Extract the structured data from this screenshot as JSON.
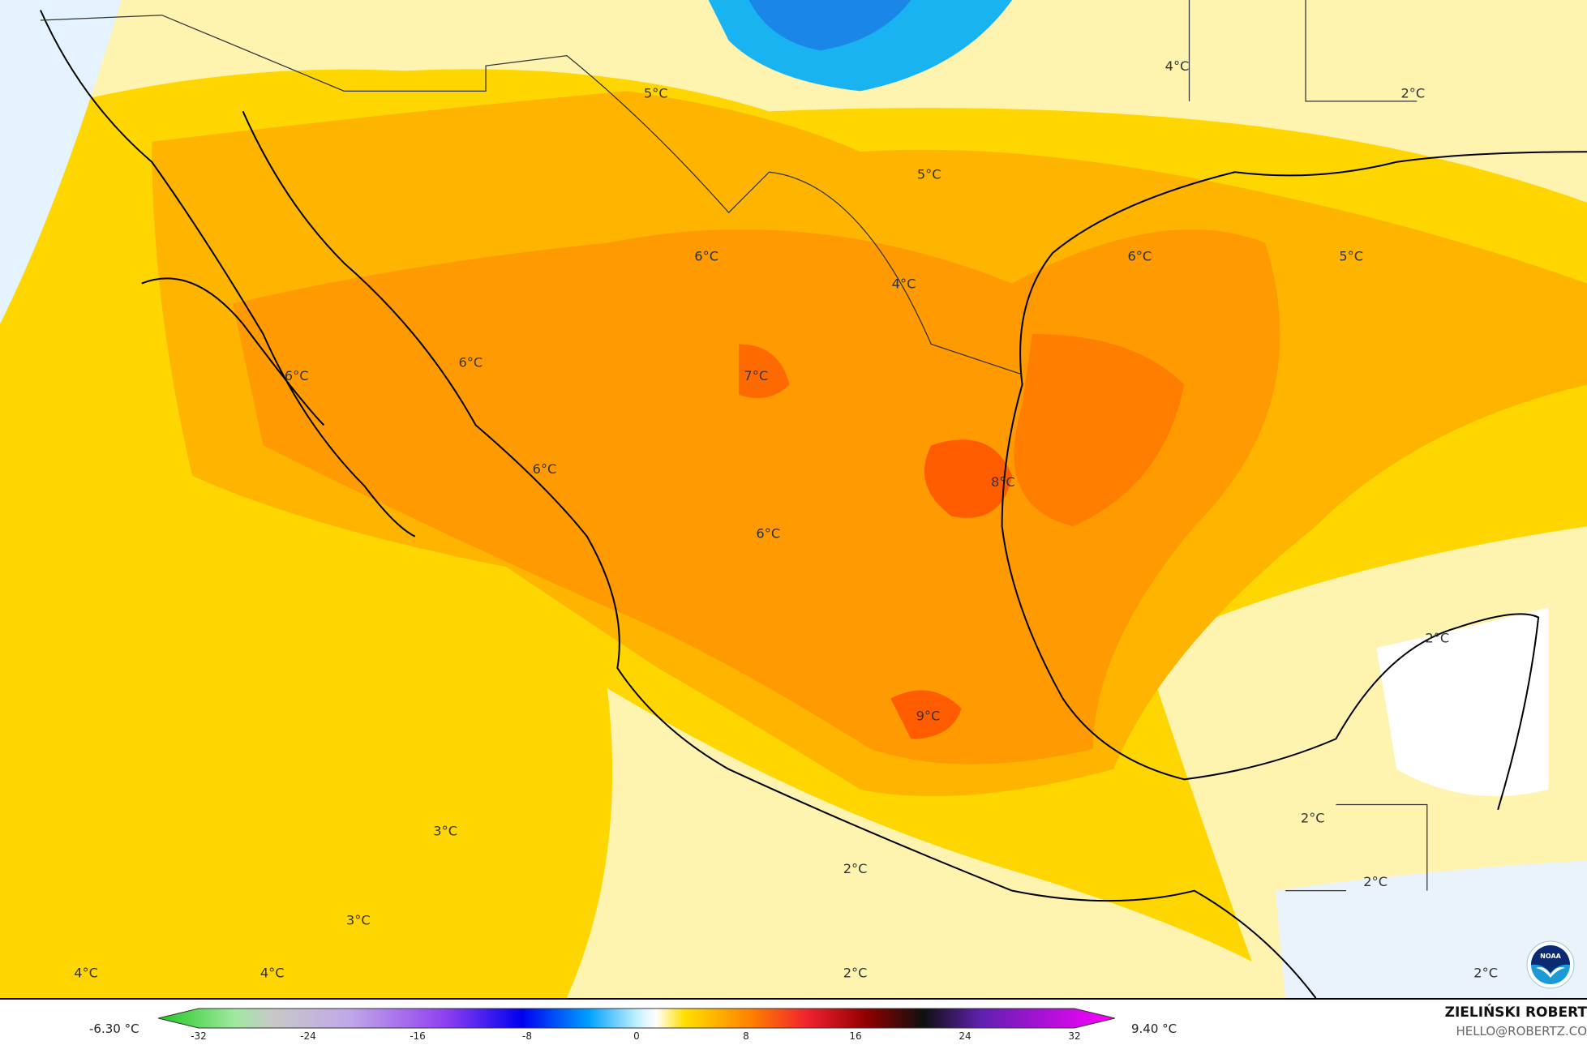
{
  "map": {
    "labels": [
      "5°C",
      "4°C",
      "2°C",
      "5°C",
      "6°C",
      "4°C",
      "6°C",
      "5°C",
      "6°C",
      "6°C",
      "7°C",
      "6°C",
      "8°C",
      "6°C",
      "2°C",
      "9°C",
      "2°C",
      "3°C",
      "2°C",
      "2°C",
      "3°C",
      "4°C",
      "4°C",
      "2°C",
      "2°C"
    ],
    "logo": "NOAA",
    "colors": {
      "light": "#fff3b0",
      "yellow": "#ffd400",
      "gold": "#ffc000",
      "orange": "#ffa200",
      "dark_orange": "#ff8400",
      "red_orange": "#ff6200",
      "blue": "#1ab0f0",
      "pale_blue": "#dcefff"
    }
  },
  "legend": {
    "min_label": "-6.30 °C",
    "max_label": "9.40 °C",
    "ticks": [
      "-32",
      "-24",
      "-16",
      "-8",
      "0",
      "8",
      "16",
      "24",
      "32"
    ],
    "range": [
      -32,
      32
    ]
  },
  "credit": {
    "author": "ZIELIŃSKI ROBERT",
    "email": "HELLO@ROBERTZ.CO"
  }
}
